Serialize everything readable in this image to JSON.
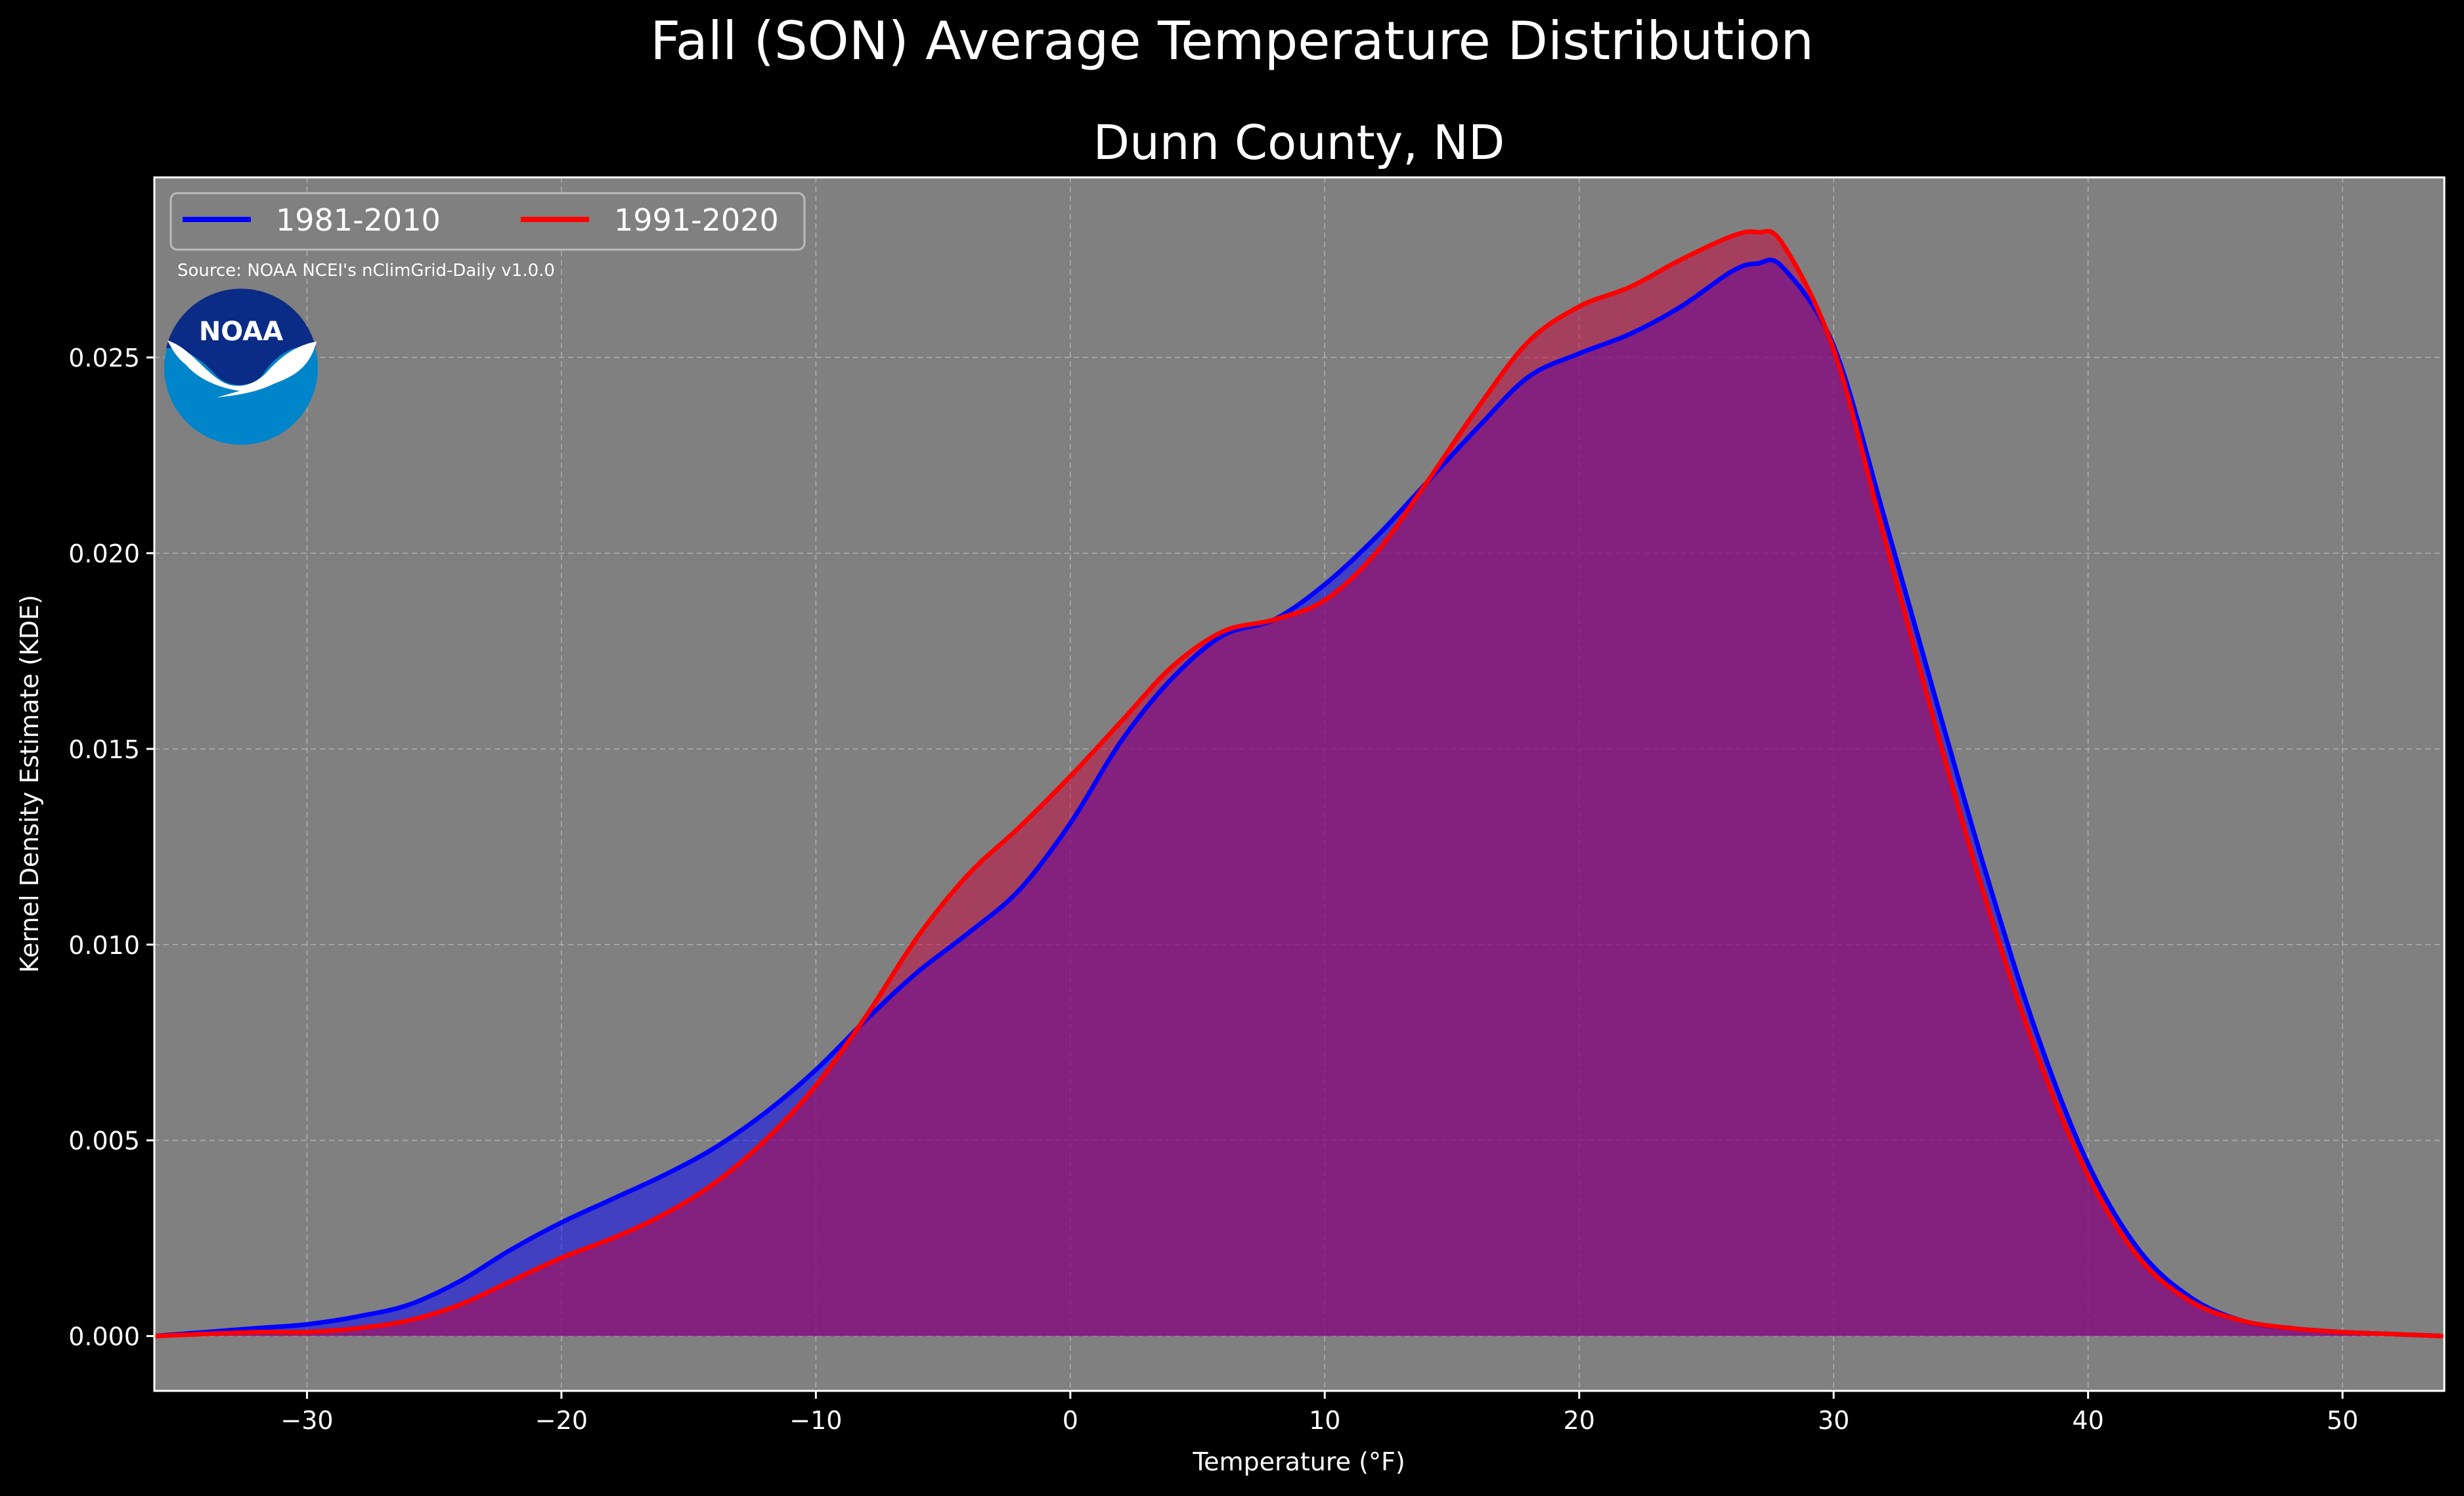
{
  "suptitle": "Fall (SON) Average Temperature Distribution",
  "source": "Source: NOAA NCEI's nClimGrid-Daily v1.0.0",
  "logo_text": "NOAA",
  "colors": {
    "background": "#000000",
    "plot_bg": "#808080",
    "series_1": "#0000ff",
    "series_2": "#ff0000",
    "fill_1": "rgba(0,0,255,0.5)",
    "fill_2": "rgba(200,0,60,0.5)",
    "logo_dark": "#0a2b86",
    "logo_light": "#0085ca"
  },
  "chart_data": {
    "type": "area",
    "title": "Dunn County, ND",
    "xlabel": "Temperature ($^\\circ$F)",
    "xlabel_display": "Temperature (°F)",
    "ylabel": "Kernel Density Estimate (KDE)",
    "xlim": [
      -36,
      54
    ],
    "ylim": [
      -0.0014,
      0.0296
    ],
    "xticks": [
      -30,
      -20,
      -10,
      0,
      10,
      20,
      30,
      40,
      50
    ],
    "xtick_labels": [
      "−30",
      "−20",
      "−10",
      "0",
      "10",
      "20",
      "30",
      "40",
      "50"
    ],
    "yticks": [
      0.0,
      0.005,
      0.01,
      0.015,
      0.02,
      0.025
    ],
    "ytick_labels": [
      "0.000",
      "0.005",
      "0.010",
      "0.015",
      "0.020",
      "0.025"
    ],
    "grid": true,
    "legend_position": "top-left",
    "series": [
      {
        "name": "1981-2010",
        "x": [
          -36,
          -32,
          -30,
          -28,
          -26,
          -24,
          -22,
          -20,
          -18,
          -16,
          -14,
          -12,
          -10,
          -8,
          -6,
          -4,
          -2,
          0,
          2,
          4,
          6,
          8,
          10,
          12,
          14,
          16,
          18,
          20,
          22,
          24,
          26,
          27,
          28,
          30,
          32,
          34,
          36,
          38,
          40,
          42,
          44,
          46,
          48,
          50,
          52,
          54
        ],
        "y": [
          0.0,
          0.0002,
          0.0003,
          0.0005,
          0.0008,
          0.0014,
          0.0022,
          0.0029,
          0.0035,
          0.0041,
          0.0048,
          0.0057,
          0.0068,
          0.0081,
          0.0093,
          0.0103,
          0.0114,
          0.0131,
          0.0152,
          0.0168,
          0.0179,
          0.0183,
          0.0192,
          0.0204,
          0.0218,
          0.0232,
          0.0245,
          0.0251,
          0.0256,
          0.0263,
          0.0272,
          0.0274,
          0.0273,
          0.0253,
          0.0209,
          0.0163,
          0.0118,
          0.0077,
          0.0044,
          0.0022,
          0.001,
          0.0004,
          0.0002,
          0.0001,
          5e-05,
          0.0
        ]
      },
      {
        "name": "1991-2020",
        "x": [
          -36,
          -32,
          -30,
          -28,
          -26,
          -24,
          -22,
          -20,
          -18,
          -16,
          -14,
          -12,
          -10,
          -8,
          -6,
          -4,
          -2,
          0,
          2,
          4,
          6,
          8,
          10,
          12,
          14,
          16,
          18,
          20,
          22,
          24,
          26,
          27,
          28,
          30,
          32,
          34,
          36,
          38,
          40,
          42,
          44,
          46,
          48,
          50,
          52,
          54
        ],
        "y": [
          0.0,
          0.0001,
          0.0001,
          0.0002,
          0.0004,
          0.0008,
          0.0014,
          0.002,
          0.0025,
          0.0031,
          0.0039,
          0.005,
          0.0064,
          0.0082,
          0.0102,
          0.0118,
          0.013,
          0.0143,
          0.0157,
          0.0171,
          0.018,
          0.0183,
          0.0188,
          0.02,
          0.0218,
          0.0237,
          0.0254,
          0.0263,
          0.0268,
          0.0275,
          0.0281,
          0.0282,
          0.0279,
          0.0252,
          0.0204,
          0.0156,
          0.0111,
          0.0072,
          0.0041,
          0.002,
          0.0009,
          0.0004,
          0.0002,
          0.0001,
          5e-05,
          0.0
        ]
      }
    ]
  }
}
